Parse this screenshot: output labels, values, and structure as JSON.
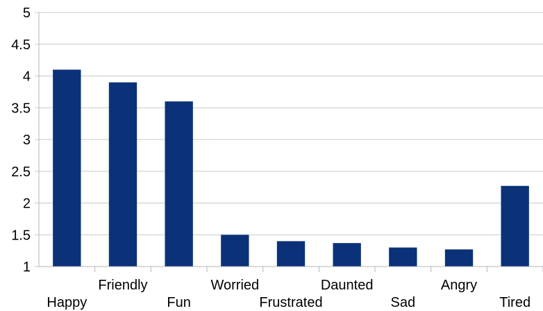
{
  "chart_data": {
    "type": "bar",
    "title": "",
    "xlabel": "",
    "ylabel": "",
    "categories": [
      "Happy",
      "Friendly",
      "Fun",
      "Worried",
      "Frustrated",
      "Daunted",
      "Sad",
      "Angry",
      "Tired"
    ],
    "values": [
      4.1,
      3.9,
      3.6,
      1.5,
      1.4,
      1.37,
      1.3,
      1.27,
      2.27
    ],
    "ylim": [
      1,
      5
    ],
    "yticks": [
      "1",
      "1.5",
      "2",
      "2.5",
      "3",
      "3.5",
      "4",
      "4.5",
      "5"
    ],
    "grid": true,
    "legend": "none",
    "bar_color": "#0b3179",
    "grid_color": "#c8c8c8"
  }
}
